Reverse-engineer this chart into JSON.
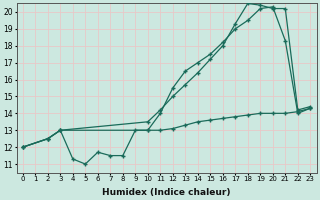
{
  "background_color": "#cce8e0",
  "grid_color": "#e8c8c8",
  "line_color": "#1a6b5a",
  "xlabel": "Humidex (Indice chaleur)",
  "xlim": [
    -0.5,
    23.5
  ],
  "ylim": [
    10.5,
    20.5
  ],
  "xticks": [
    0,
    1,
    2,
    3,
    4,
    5,
    6,
    7,
    8,
    9,
    10,
    11,
    12,
    13,
    14,
    15,
    16,
    17,
    18,
    19,
    20,
    21,
    22,
    23
  ],
  "yticks": [
    11,
    12,
    13,
    14,
    15,
    16,
    17,
    18,
    19,
    20
  ],
  "line1_x": [
    0,
    2,
    3,
    4,
    5,
    6,
    7,
    8,
    9,
    10,
    11,
    12,
    13,
    14,
    15,
    16,
    17,
    18,
    19,
    20,
    21,
    22,
    23
  ],
  "line1_y": [
    12.0,
    12.5,
    13.0,
    11.3,
    11.0,
    11.7,
    11.5,
    11.5,
    13.0,
    13.0,
    13.0,
    13.1,
    13.3,
    13.5,
    13.6,
    13.7,
    13.8,
    13.9,
    14.0,
    14.0,
    14.0,
    14.1,
    14.3
  ],
  "line2_x": [
    0,
    2,
    3,
    10,
    11,
    12,
    13,
    14,
    15,
    16,
    17,
    18,
    19,
    20,
    21,
    22,
    23
  ],
  "line2_y": [
    12.0,
    12.5,
    13.0,
    13.0,
    14.0,
    15.5,
    16.5,
    17.0,
    17.5,
    18.2,
    19.0,
    19.5,
    20.2,
    20.3,
    18.3,
    14.0,
    14.3
  ],
  "line3_x": [
    0,
    2,
    3,
    10,
    11,
    12,
    13,
    14,
    15,
    16,
    17,
    18,
    19,
    20,
    21,
    22,
    23
  ],
  "line3_y": [
    12.0,
    12.5,
    13.0,
    13.5,
    14.2,
    15.0,
    15.7,
    16.4,
    17.2,
    18.0,
    19.3,
    20.5,
    20.4,
    20.2,
    20.2,
    14.2,
    14.4
  ]
}
